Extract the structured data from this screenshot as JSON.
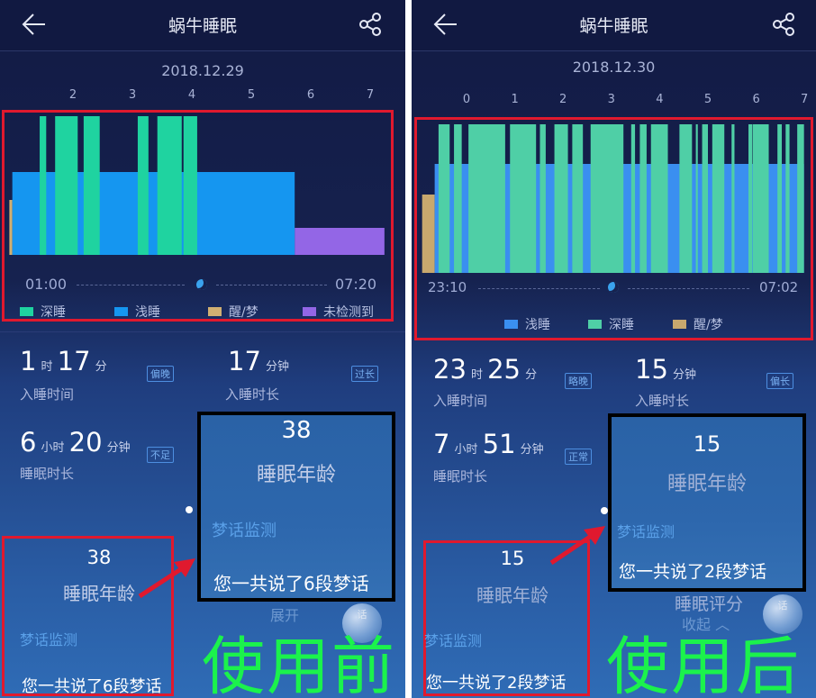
{
  "app": {
    "title": "蜗牛睡眠",
    "back_icon": "arrow-left-icon",
    "share_icon": "share-icon"
  },
  "colors": {
    "deep": "#1fd3a0",
    "light": "#1596f0",
    "wake": "#d1b072",
    "undetected": "#9366e6",
    "annotation_red": "#e0192e",
    "annotation_green": "#1bf24c"
  },
  "panels": [
    {
      "date": "2018.12.29",
      "hour_ticks": [
        "2",
        "3",
        "4",
        "5",
        "6",
        "7"
      ],
      "start_time": "01:00",
      "end_time": "07:20",
      "legend": [
        {
          "label": "深睡",
          "color": "#1fd3a0"
        },
        {
          "label": "浅睡",
          "color": "#1596f0"
        },
        {
          "label": "醒/梦",
          "color": "#d1b072"
        },
        {
          "label": "未检测到",
          "color": "#9366e6"
        }
      ],
      "chart_data": {
        "type": "bar",
        "x_unit": "hour",
        "x_ticks": [
          2,
          3,
          4,
          5,
          6,
          7
        ],
        "segments": [
          {
            "stage": "wake",
            "start": 0.93,
            "end": 0.98
          },
          {
            "stage": "light",
            "start": 0.98,
            "end": 5.73
          },
          {
            "stage": "deep",
            "start": 1.44,
            "end": 1.55
          },
          {
            "stage": "deep",
            "start": 1.7,
            "end": 2.08
          },
          {
            "stage": "deep",
            "start": 2.18,
            "end": 2.45
          },
          {
            "stage": "deep",
            "start": 3.09,
            "end": 3.27
          },
          {
            "stage": "deep",
            "start": 3.42,
            "end": 3.83
          },
          {
            "stage": "deep",
            "start": 3.86,
            "end": 4.09
          },
          {
            "stage": "undetected",
            "start": 5.73,
            "end": 7.24
          }
        ]
      },
      "stats": {
        "sleep_time": {
          "h": "1",
          "h_unit": "时",
          "m": "17",
          "m_unit": "分",
          "label": "入睡时间",
          "badge": "偏晚"
        },
        "fall_asleep": {
          "m": "17",
          "m_unit": "分钟",
          "label": "入睡时长",
          "badge": "过长"
        },
        "duration": {
          "h": "6",
          "h_unit": "小时",
          "m": "20",
          "m_unit": "分钟",
          "label": "睡眠时长",
          "badge": "不足"
        }
      },
      "sleep_age": "38",
      "sleep_age_label": "睡眠年龄",
      "dream_title": "梦话监测",
      "dream_text": "您一共说了6段梦话",
      "bubble_text": "话",
      "toggle": "展开",
      "annotation": "使用前"
    },
    {
      "date": "2018.12.30",
      "hour_ticks": [
        "0",
        "1",
        "2",
        "3",
        "4",
        "5",
        "6",
        "7"
      ],
      "start_time": "23:10",
      "end_time": "07:02",
      "legend": [
        {
          "label": "浅睡",
          "color": "#3a8ff0"
        },
        {
          "label": "深睡",
          "color": "#4fcfa6"
        },
        {
          "label": "醒/梦",
          "color": "#c8a86e"
        }
      ],
      "chart_data": {
        "type": "bar",
        "x_unit": "hour",
        "x_ticks": [
          0,
          1,
          2,
          3,
          4,
          5,
          6,
          7
        ],
        "segments": [
          {
            "stage": "wake",
            "start": -0.92,
            "end": -0.66
          },
          {
            "stage": "light",
            "start": -0.66,
            "end": 6.99
          },
          {
            "stage": "deep",
            "start": -0.58,
            "end": -0.35
          },
          {
            "stage": "deep",
            "start": -0.26,
            "end": -0.1
          },
          {
            "stage": "deep",
            "start": 0.04,
            "end": 0.8
          },
          {
            "stage": "deep",
            "start": 0.9,
            "end": 1.44
          },
          {
            "stage": "deep",
            "start": 1.52,
            "end": 1.64
          },
          {
            "stage": "deep",
            "start": 1.82,
            "end": 2.1
          },
          {
            "stage": "deep",
            "start": 2.19,
            "end": 2.41
          },
          {
            "stage": "deep",
            "start": 2.57,
            "end": 3.25
          },
          {
            "stage": "deep",
            "start": 3.41,
            "end": 3.49
          },
          {
            "stage": "deep",
            "start": 3.59,
            "end": 3.73
          },
          {
            "stage": "deep",
            "start": 3.82,
            "end": 4.17
          },
          {
            "stage": "deep",
            "start": 4.41,
            "end": 4.67
          },
          {
            "stage": "deep",
            "start": 4.75,
            "end": 4.79
          },
          {
            "stage": "deep",
            "start": 4.88,
            "end": 5.0
          },
          {
            "stage": "deep",
            "start": 5.09,
            "end": 5.34
          },
          {
            "stage": "deep",
            "start": 5.49,
            "end": 5.55
          },
          {
            "stage": "deep",
            "start": 5.84,
            "end": 5.92
          },
          {
            "stage": "deep",
            "start": 5.93,
            "end": 6.26
          },
          {
            "stage": "deep",
            "start": 6.44,
            "end": 6.53
          },
          {
            "stage": "deep",
            "start": 6.61,
            "end": 6.69
          },
          {
            "stage": "deep",
            "start": 6.85,
            "end": 6.99
          }
        ]
      },
      "stats": {
        "sleep_time": {
          "h": "23",
          "h_unit": "时",
          "m": "25",
          "m_unit": "分",
          "label": "入睡时间",
          "badge": "略晚"
        },
        "fall_asleep": {
          "m": "15",
          "m_unit": "分钟",
          "label": "入睡时长",
          "badge": "偏长"
        },
        "duration": {
          "h": "7",
          "h_unit": "小时",
          "m": "51",
          "m_unit": "分钟",
          "label": "睡眠时长",
          "badge": "正常"
        }
      },
      "sleep_age": "15",
      "sleep_age_label": "睡眠年龄",
      "dream_title": "梦话监测",
      "dream_text": "您一共说了2段梦话",
      "score_label": "睡眠评分",
      "bubble_text": "话",
      "toggle": "收起 ︿",
      "annotation": "使用后"
    }
  ]
}
